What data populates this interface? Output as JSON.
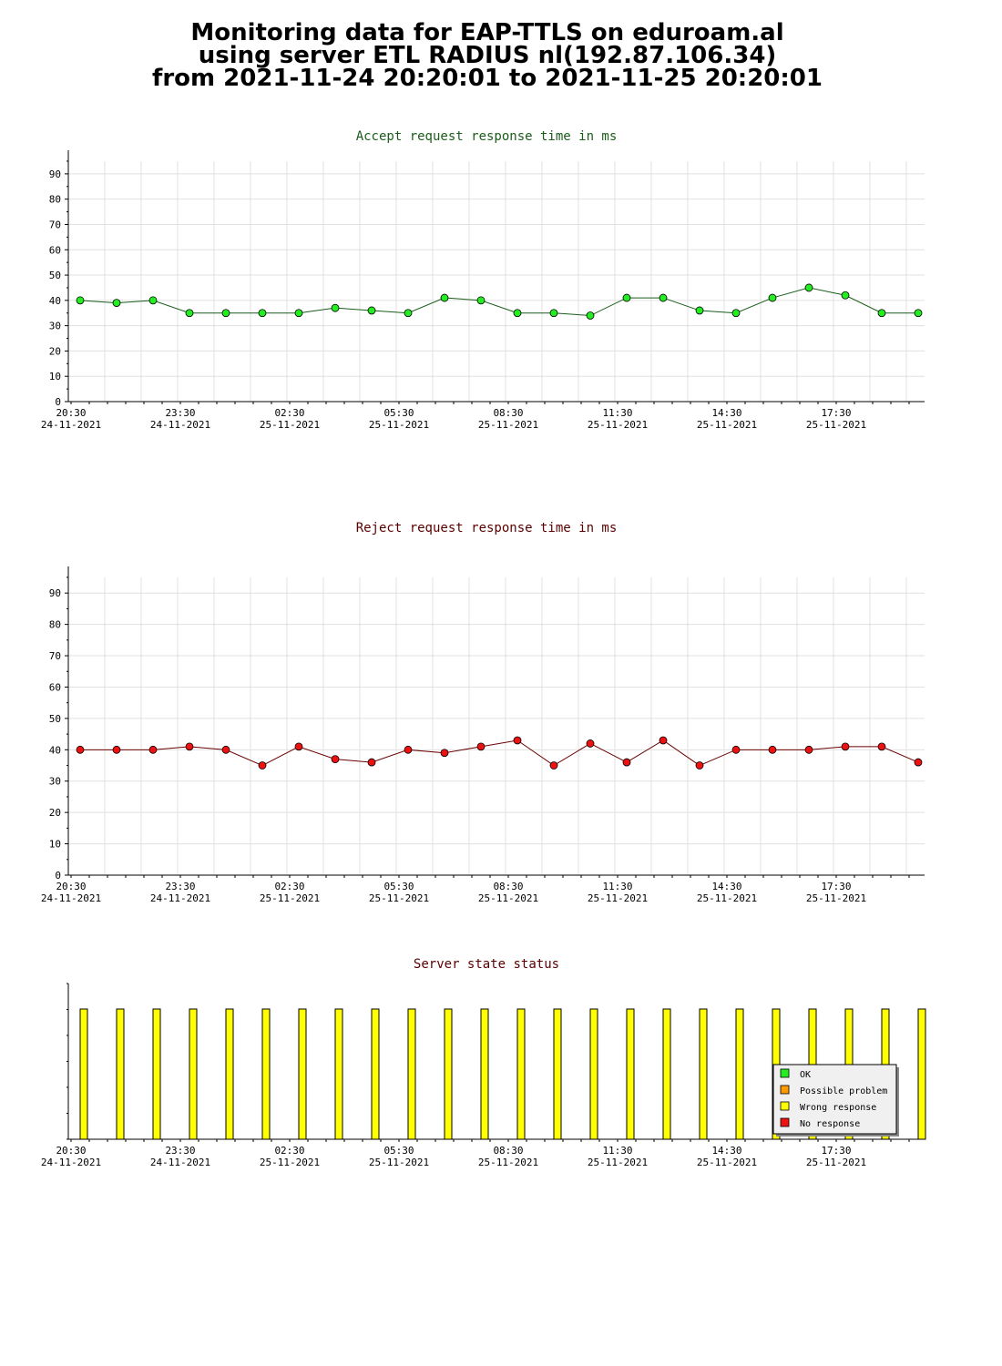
{
  "header": {
    "line1": "Monitoring data for EAP-TTLS on eduroam.al",
    "line2": "using server ETL RADIUS nl(192.87.106.34)",
    "line3": "from 2021-11-24 20:20:01 to 2021-11-25 20:20:01"
  },
  "colors": {
    "accept_line": "#1a5c1a",
    "accept_marker": "#22ee22",
    "accept_title": "#1a5c1a",
    "reject_line": "#6b0000",
    "reject_marker": "#ee1111",
    "reject_title": "#5a0000",
    "status_title": "#5a0000",
    "grid": "#e0e0e0",
    "ok": "#22ee22",
    "possible_problem": "#ff9900",
    "wrong_response": "#ffff00",
    "no_response": "#ee1111"
  },
  "x_ticks": [
    {
      "time": "20:30",
      "date": "24-11-2021"
    },
    {
      "time": "23:30",
      "date": "24-11-2021"
    },
    {
      "time": "02:30",
      "date": "25-11-2021"
    },
    {
      "time": "05:30",
      "date": "25-11-2021"
    },
    {
      "time": "08:30",
      "date": "25-11-2021"
    },
    {
      "time": "11:30",
      "date": "25-11-2021"
    },
    {
      "time": "14:30",
      "date": "25-11-2021"
    },
    {
      "time": "17:30",
      "date": "25-11-2021"
    }
  ],
  "chart_data": [
    {
      "type": "line",
      "title": "Accept request response time in ms",
      "x": [
        "20:30",
        "21:30",
        "22:30",
        "23:30",
        "00:30",
        "01:30",
        "02:30",
        "03:30",
        "04:30",
        "05:30",
        "06:30",
        "07:30",
        "08:30",
        "09:30",
        "10:30",
        "11:30",
        "12:30",
        "13:30",
        "14:30",
        "15:30",
        "16:30",
        "17:30",
        "18:30",
        "19:30"
      ],
      "values": [
        40,
        39,
        40,
        35,
        35,
        35,
        35,
        37,
        36,
        35,
        41,
        40,
        35,
        35,
        34,
        41,
        41,
        36,
        35,
        41,
        45,
        42,
        35,
        35
      ],
      "ylim": [
        0,
        95
      ],
      "yticks": [
        0,
        10,
        20,
        30,
        40,
        50,
        60,
        70,
        80,
        90
      ],
      "grid": true
    },
    {
      "type": "line",
      "title": "Reject request response time in ms",
      "x": [
        "20:30",
        "21:30",
        "22:30",
        "23:30",
        "00:30",
        "01:30",
        "02:30",
        "03:30",
        "04:30",
        "05:30",
        "06:30",
        "07:30",
        "08:30",
        "09:30",
        "10:30",
        "11:30",
        "12:30",
        "13:30",
        "14:30",
        "15:30",
        "16:30",
        "17:30",
        "18:30",
        "19:30"
      ],
      "values": [
        40,
        40,
        40,
        41,
        40,
        35,
        41,
        37,
        36,
        40,
        39,
        41,
        43,
        35,
        42,
        36,
        43,
        35,
        40,
        40,
        40,
        41,
        41,
        36
      ],
      "ylim": [
        0,
        95
      ],
      "yticks": [
        0,
        10,
        20,
        30,
        40,
        50,
        60,
        70,
        80,
        90
      ],
      "grid": true
    },
    {
      "type": "bar",
      "title": "Server state status",
      "x": [
        "20:30",
        "21:30",
        "22:30",
        "23:30",
        "00:30",
        "01:30",
        "02:30",
        "03:30",
        "04:30",
        "05:30",
        "06:30",
        "07:30",
        "08:30",
        "09:30",
        "10:30",
        "11:30",
        "12:30",
        "13:30",
        "14:30",
        "15:30",
        "16:30",
        "17:30",
        "18:30",
        "19:30"
      ],
      "states": [
        "Wrong response",
        "Wrong response",
        "Wrong response",
        "Wrong response",
        "Wrong response",
        "Wrong response",
        "Wrong response",
        "Wrong response",
        "Wrong response",
        "Wrong response",
        "Wrong response",
        "Wrong response",
        "Wrong response",
        "Wrong response",
        "Wrong response",
        "Wrong response",
        "Wrong response",
        "Wrong response",
        "Wrong response",
        "Wrong response",
        "Wrong response",
        "Wrong response",
        "Wrong response",
        "Wrong response"
      ],
      "legend": [
        "OK",
        "Possible problem",
        "Wrong response",
        "No response"
      ],
      "legend_position": "bottom-right"
    }
  ]
}
